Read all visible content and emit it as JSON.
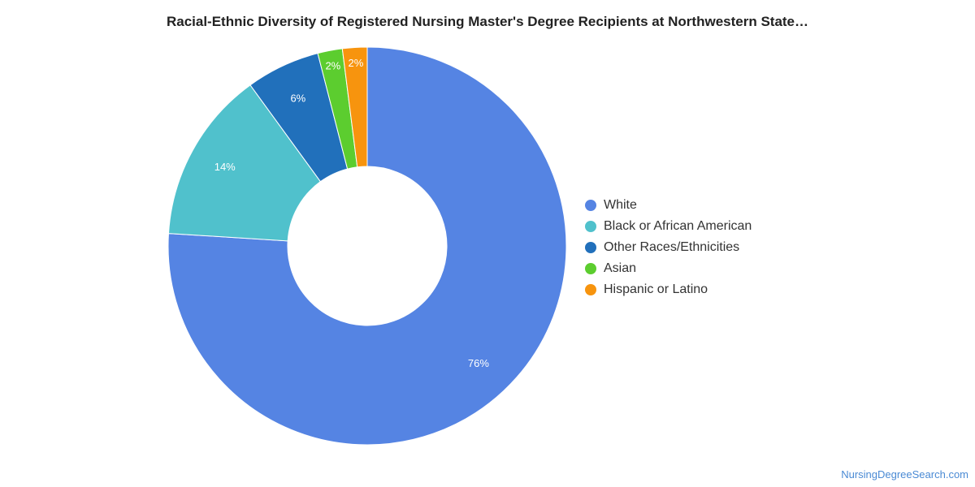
{
  "chart_data": {
    "type": "pie",
    "title": "Racial-Ethnic Diversity of Registered Nursing Master's Degree Recipients at Northwestern State…",
    "donut": true,
    "legend_position": "right",
    "slices": [
      {
        "name": "White",
        "value": 76,
        "label": "76%",
        "color": "#5584e3"
      },
      {
        "name": "Black or African American",
        "value": 14,
        "label": "14%",
        "color": "#50c1cc"
      },
      {
        "name": "Other Races/Ethnicities",
        "value": 6,
        "label": "6%",
        "color": "#2170bb"
      },
      {
        "name": "Asian",
        "value": 2,
        "label": "2%",
        "color": "#5ccd2f"
      },
      {
        "name": "Hispanic or Latino",
        "value": 2,
        "label": "2%",
        "color": "#f7940e"
      }
    ]
  },
  "watermark": "NursingDegreeSearch.com"
}
